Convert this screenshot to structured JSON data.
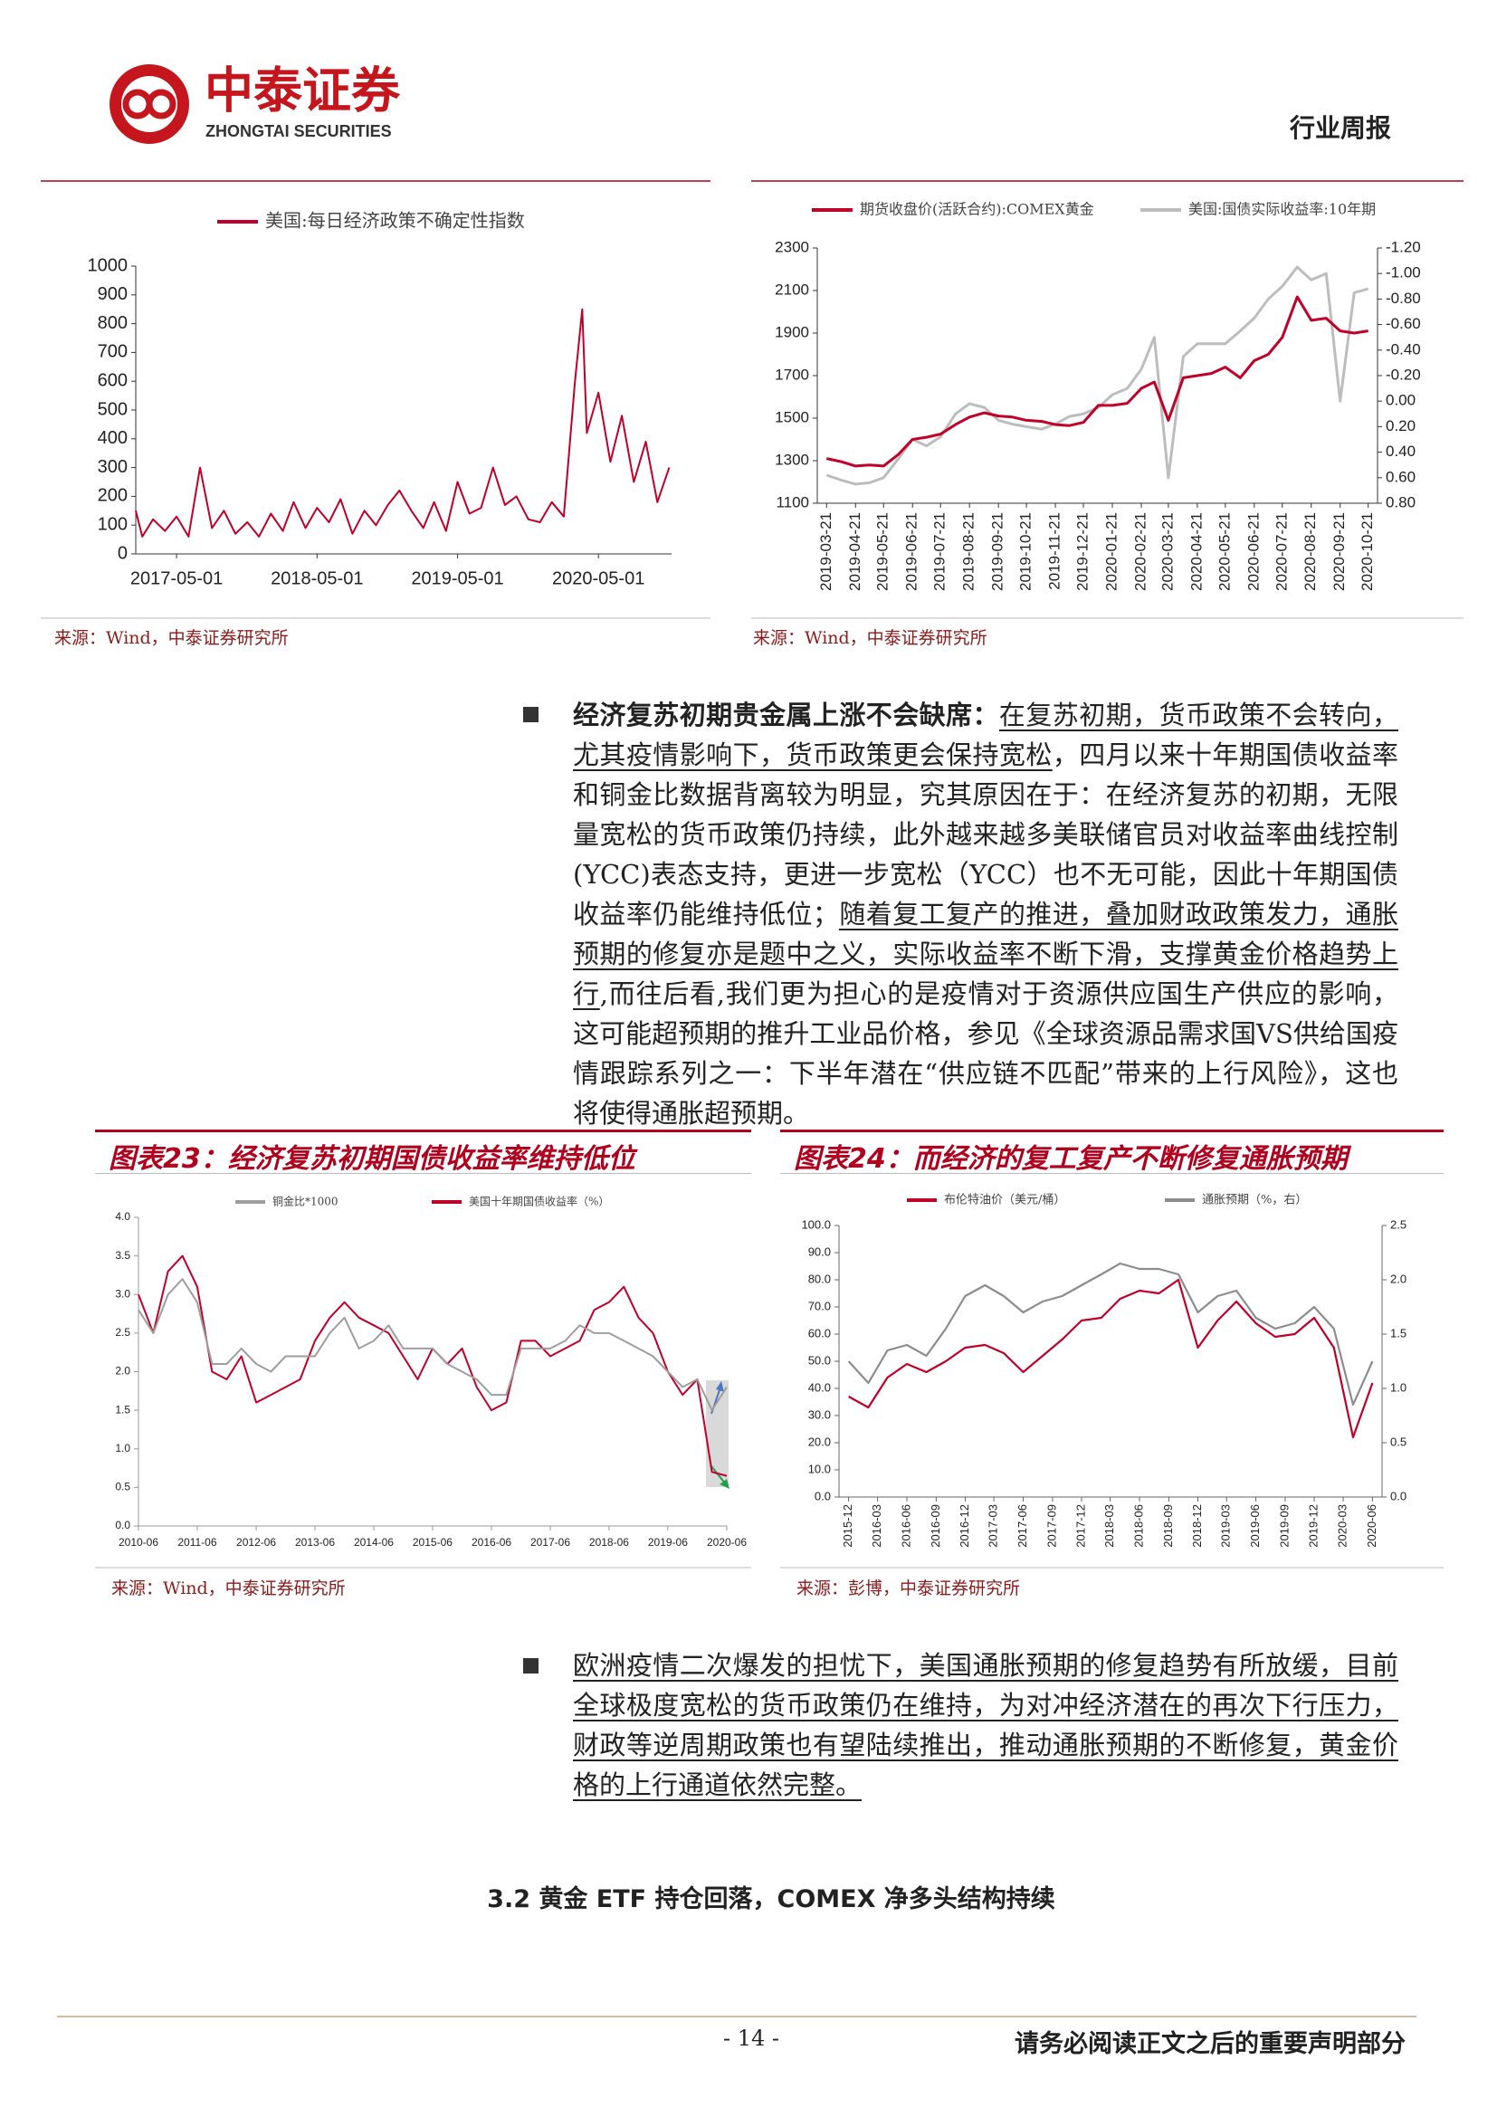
{
  "header": {
    "logo_cn": "中泰证券",
    "logo_en": "ZHONGTAI SECURITIES",
    "doc_type": "行业周报"
  },
  "chart_data": [
    {
      "type": "line",
      "source": "来源：Wind，中泰证券研究所",
      "xlim": [
        "2017-01-15",
        "2020-11-07"
      ],
      "xticks": [
        "2017-05-01",
        "2018-05-01",
        "2019-05-01",
        "2020-05-01"
      ],
      "ylim": [
        0,
        1000
      ],
      "yticks": [
        0,
        100,
        200,
        300,
        400,
        500,
        600,
        700,
        800,
        900,
        1000
      ],
      "x": [
        "2017-01-15",
        "2017-02-01",
        "2017-03-01",
        "2017-04-01",
        "2017-05-01",
        "2017-06-01",
        "2017-07-01",
        "2017-08-01",
        "2017-09-01",
        "2017-10-01",
        "2017-11-01",
        "2017-12-01",
        "2018-01-01",
        "2018-02-01",
        "2018-03-01",
        "2018-04-01",
        "2018-05-01",
        "2018-06-01",
        "2018-07-01",
        "2018-08-01",
        "2018-09-01",
        "2018-10-01",
        "2018-11-01",
        "2018-12-01",
        "2019-01-01",
        "2019-02-01",
        "2019-03-01",
        "2019-04-01",
        "2019-05-01",
        "2019-06-01",
        "2019-07-01",
        "2019-08-01",
        "2019-09-01",
        "2019-10-01",
        "2019-11-01",
        "2019-12-01",
        "2020-01-01",
        "2020-02-01",
        "2020-03-01",
        "2020-03-20",
        "2020-04-01",
        "2020-05-01",
        "2020-06-01",
        "2020-07-01",
        "2020-08-01",
        "2020-09-01",
        "2020-10-01",
        "2020-11-01"
      ],
      "series": [
        {
          "name": "美国:每日经济政策不确定性指数",
          "color": "#c00028",
          "values": [
            150,
            60,
            120,
            80,
            130,
            60,
            300,
            90,
            150,
            70,
            110,
            60,
            140,
            80,
            180,
            90,
            160,
            110,
            190,
            70,
            150,
            100,
            170,
            220,
            150,
            90,
            180,
            80,
            250,
            140,
            160,
            300,
            170,
            200,
            120,
            110,
            180,
            130,
            600,
            850,
            420,
            560,
            320,
            480,
            250,
            390,
            180,
            300
          ]
        }
      ]
    },
    {
      "type": "line",
      "source": "来源：Wind，中泰证券研究所",
      "xlim": [
        "2019-03-11",
        "2020-10-31"
      ],
      "xticks": [
        "2019-03-21",
        "2019-04-21",
        "2019-05-21",
        "2019-06-21",
        "2019-07-21",
        "2019-08-21",
        "2019-09-21",
        "2019-10-21",
        "2019-11-21",
        "2019-12-21",
        "2020-01-21",
        "2020-02-21",
        "2020-03-21",
        "2020-04-21",
        "2020-05-21",
        "2020-06-21",
        "2020-07-21",
        "2020-08-21",
        "2020-09-21",
        "2020-10-21"
      ],
      "ylim": [
        1100,
        2300
      ],
      "yticks": [
        1100,
        1300,
        1500,
        1700,
        1900,
        2100,
        2300
      ],
      "y2lim": [
        0.8,
        -1.2
      ],
      "y2ticks": [
        {
          "value": 0.8,
          "label": "0.80"
        },
        {
          "value": 0.6,
          "label": "0.60"
        },
        {
          "value": 0.4,
          "label": "0.40"
        },
        {
          "value": 0.2,
          "label": "0.20"
        },
        {
          "value": 0,
          "label": "0.00"
        },
        {
          "value": -0.2,
          "label": "-0.20"
        },
        {
          "value": -0.4,
          "label": "-0.40"
        },
        {
          "value": -0.6,
          "label": "-0.60"
        },
        {
          "value": -0.8,
          "label": "-0.80"
        },
        {
          "value": -1,
          "label": "-1.00"
        },
        {
          "value": -1.2,
          "label": "-1.20"
        }
      ],
      "x": [
        "2019-03-21",
        "2019-04-06",
        "2019-04-21",
        "2019-05-06",
        "2019-05-21",
        "2019-06-06",
        "2019-06-21",
        "2019-07-06",
        "2019-07-21",
        "2019-08-06",
        "2019-08-21",
        "2019-09-06",
        "2019-09-21",
        "2019-10-06",
        "2019-10-21",
        "2019-11-06",
        "2019-11-21",
        "2019-12-06",
        "2019-12-21",
        "2020-01-06",
        "2020-01-21",
        "2020-02-06",
        "2020-02-21",
        "2020-03-06",
        "2020-03-21",
        "2020-04-06",
        "2020-04-21",
        "2020-05-06",
        "2020-05-21",
        "2020-06-06",
        "2020-06-21",
        "2020-07-06",
        "2020-07-21",
        "2020-08-06",
        "2020-08-21",
        "2020-09-06",
        "2020-09-21",
        "2020-10-06",
        "2020-10-21"
      ],
      "series": [
        {
          "name": "期货收盘价(活跃合约):COMEX黄金",
          "color": "#c00028",
          "values": [
            1310,
            1295,
            1275,
            1280,
            1275,
            1330,
            1400,
            1410,
            1425,
            1470,
            1505,
            1525,
            1510,
            1505,
            1490,
            1485,
            1470,
            1465,
            1480,
            1560,
            1560,
            1570,
            1640,
            1670,
            1490,
            1690,
            1700,
            1710,
            1740,
            1690,
            1770,
            1800,
            1880,
            2070,
            1960,
            1970,
            1910,
            1900,
            1910
          ]
        },
        {
          "name": "美国:国债实际收益率:10年期",
          "color": "#bdbdbd",
          "axis": "y2",
          "values": [
            0.58,
            0.62,
            0.65,
            0.64,
            0.6,
            0.45,
            0.3,
            0.35,
            0.28,
            0.1,
            0.02,
            0.05,
            0.15,
            0.18,
            0.2,
            0.22,
            0.18,
            0.12,
            0.1,
            0.05,
            -0.05,
            -0.1,
            -0.25,
            -0.5,
            0.6,
            -0.35,
            -0.45,
            -0.45,
            -0.45,
            -0.55,
            -0.65,
            -0.8,
            -0.9,
            -1.05,
            -0.95,
            -1,
            0,
            -0.85,
            -0.88
          ]
        }
      ]
    },
    {
      "type": "line",
      "title": "图表23：经济复苏初期国债收益率维持低位",
      "source": "来源：Wind，中泰证券研究所",
      "xlim": [
        "2010-06",
        "2020-06"
      ],
      "xticks": [
        "2010-06",
        "2011-06",
        "2012-06",
        "2013-06",
        "2014-06",
        "2015-06",
        "2016-06",
        "2017-06",
        "2018-06",
        "2019-06",
        "2020-06"
      ],
      "ylim": [
        0,
        4
      ],
      "yticks": [
        {
          "value": 0,
          "label": "0.0"
        },
        0.5,
        {
          "value": 1,
          "label": "1.0"
        },
        1.5,
        {
          "value": 2,
          "label": "2.0"
        },
        2.5,
        {
          "value": 3,
          "label": "3.0"
        },
        3.5,
        {
          "value": 4,
          "label": "4.0"
        }
      ],
      "x": [
        "2010-06",
        "2010-09",
        "2010-12",
        "2011-03",
        "2011-06",
        "2011-09",
        "2011-12",
        "2012-03",
        "2012-06",
        "2012-09",
        "2012-12",
        "2013-03",
        "2013-06",
        "2013-09",
        "2013-12",
        "2014-03",
        "2014-06",
        "2014-09",
        "2014-12",
        "2015-03",
        "2015-06",
        "2015-09",
        "2015-12",
        "2016-03",
        "2016-06",
        "2016-09",
        "2016-12",
        "2017-03",
        "2017-06",
        "2017-09",
        "2017-12",
        "2018-03",
        "2018-06",
        "2018-09",
        "2018-12",
        "2019-03",
        "2019-06",
        "2019-09",
        "2019-12",
        "2020-03",
        "2020-06"
      ],
      "series": [
        {
          "name": "铜金比*1000",
          "color": "#9e9e9e",
          "values": [
            2.8,
            2.5,
            3.0,
            3.2,
            2.9,
            2.1,
            2.1,
            2.3,
            2.1,
            2.0,
            2.2,
            2.2,
            2.2,
            2.5,
            2.7,
            2.3,
            2.4,
            2.6,
            2.3,
            2.3,
            2.3,
            2.1,
            2.0,
            1.9,
            1.7,
            1.7,
            2.3,
            2.3,
            2.3,
            2.4,
            2.6,
            2.5,
            2.5,
            2.4,
            2.3,
            2.2,
            2.0,
            1.8,
            1.9,
            1.5,
            1.8
          ]
        },
        {
          "name": "美国十年期国债收益率（%）",
          "color": "#c00028",
          "values": [
            3.0,
            2.5,
            3.3,
            3.5,
            3.1,
            2.0,
            1.9,
            2.2,
            1.6,
            1.7,
            1.8,
            1.9,
            2.4,
            2.7,
            2.9,
            2.7,
            2.6,
            2.5,
            2.2,
            1.9,
            2.3,
            2.1,
            2.3,
            1.8,
            1.5,
            1.6,
            2.4,
            2.4,
            2.2,
            2.3,
            2.4,
            2.8,
            2.9,
            3.1,
            2.7,
            2.5,
            2.0,
            1.7,
            1.9,
            0.7,
            0.65
          ]
        }
      ]
    },
    {
      "type": "line",
      "title": "图表24：而经济的复工复产不断修复通胀预期",
      "source": "来源：彭博，中泰证券研究所",
      "xlim": [
        "2015-11",
        "2020-07"
      ],
      "xticks": [
        "2015-12",
        "2016-03",
        "2016-06",
        "2016-09",
        "2016-12",
        "2017-03",
        "2017-06",
        "2017-09",
        "2017-12",
        "2018-03",
        "2018-06",
        "2018-09",
        "2018-12",
        "2019-03",
        "2019-06",
        "2019-09",
        "2019-12",
        "2020-03",
        "2020-06"
      ],
      "ylim": [
        0,
        100
      ],
      "yticks": [
        {
          "value": 0,
          "label": "0.0"
        },
        {
          "value": 10,
          "label": "10.0"
        },
        {
          "value": 20,
          "label": "20.0"
        },
        {
          "value": 30,
          "label": "30.0"
        },
        {
          "value": 40,
          "label": "40.0"
        },
        {
          "value": 50,
          "label": "50.0"
        },
        {
          "value": 60,
          "label": "60.0"
        },
        {
          "value": 70,
          "label": "70.0"
        },
        {
          "value": 80,
          "label": "80.0"
        },
        {
          "value": 90,
          "label": "90.0"
        },
        {
          "value": 100,
          "label": "100.0"
        }
      ],
      "y2lim": [
        0,
        2.5
      ],
      "y2ticks": [
        {
          "value": 0,
          "label": "0.0"
        },
        0.5,
        {
          "value": 1,
          "label": "1.0"
        },
        1.5,
        {
          "value": 2,
          "label": "2.0"
        },
        2.5
      ],
      "x": [
        "2015-12",
        "2016-02",
        "2016-04",
        "2016-06",
        "2016-08",
        "2016-10",
        "2016-12",
        "2017-02",
        "2017-04",
        "2017-06",
        "2017-08",
        "2017-10",
        "2017-12",
        "2018-02",
        "2018-04",
        "2018-06",
        "2018-08",
        "2018-10",
        "2018-12",
        "2019-02",
        "2019-04",
        "2019-06",
        "2019-08",
        "2019-10",
        "2019-12",
        "2020-02",
        "2020-04",
        "2020-06"
      ],
      "series": [
        {
          "name": "布伦特油价（美元/桶）",
          "color": "#c00028",
          "values": [
            37,
            33,
            44,
            49,
            46,
            50,
            55,
            56,
            53,
            46,
            52,
            58,
            65,
            66,
            73,
            76,
            75,
            80,
            55,
            65,
            72,
            64,
            59,
            60,
            66,
            55,
            22,
            42
          ]
        },
        {
          "name": "通胀预期（%，右）",
          "color": "#8c8c8c",
          "axis": "y2",
          "values": [
            1.25,
            1.05,
            1.35,
            1.4,
            1.3,
            1.55,
            1.85,
            1.95,
            1.85,
            1.7,
            1.8,
            1.85,
            1.95,
            2.05,
            2.15,
            2.1,
            2.1,
            2.05,
            1.7,
            1.85,
            1.9,
            1.65,
            1.55,
            1.6,
            1.75,
            1.55,
            0.85,
            1.25
          ]
        }
      ]
    }
  ],
  "body": {
    "bullets": [
      {
        "segments": [
          {
            "text": "经济复苏初期贵金属上涨不会缺席：",
            "style": "bold"
          },
          {
            "text": "在复苏初期，货币政策不会转向，尤其疫情影响下，货币政策更会保持宽松",
            "style": "underline"
          },
          {
            "text": "，四月以来十年期国债收益率和铜金比数据背离较为明显，究其原因在于：在经济复苏的初期，无限量宽松的货币政策仍持续，此外越来越多美联储官员对收益率曲线控制(YCC)表态支持，更进一步宽松（YCC）也不无可能，因此十年期国债收益率仍能维持低位；",
            "style": "plain"
          },
          {
            "text": "随着复工复产的推进，叠加财政政策发力，通胀预期的修复亦是题中之义，实际收益率不断下滑，支撑黄金价格趋势上行",
            "style": "underline"
          },
          {
            "text": ",而往后看,我们更为担心的是疫情对于资源供应国生产供应的影响，这可能超预期的推升工业品价格，参见《全球资源品需求国VS供给国疫情跟踪系列之一：下半年潜在“供应链不匹配”带来的上行风险》，这也将使得通胀超预期。",
            "style": "plain"
          }
        ]
      },
      {
        "segments": [
          {
            "text": "欧洲疫情二次爆发的担忧下，美国通胀预期的修复趋势有所放缓，目前全球极度宽松的货币政策仍在维持，为对冲经济潜在的再次下行压力，财政等逆周期政策也有望陆续推出，推动通胀预期的不断修复，黄金价格的上行通道依然完整。",
            "style": "underline"
          }
        ]
      }
    ]
  },
  "section_heading": "3.2 黄金 ETF 持仓回落，COMEX 净多头结构持续",
  "footer": {
    "page": "- 14 -",
    "disclaimer": "请务必阅读正文之后的重要声明部分"
  }
}
